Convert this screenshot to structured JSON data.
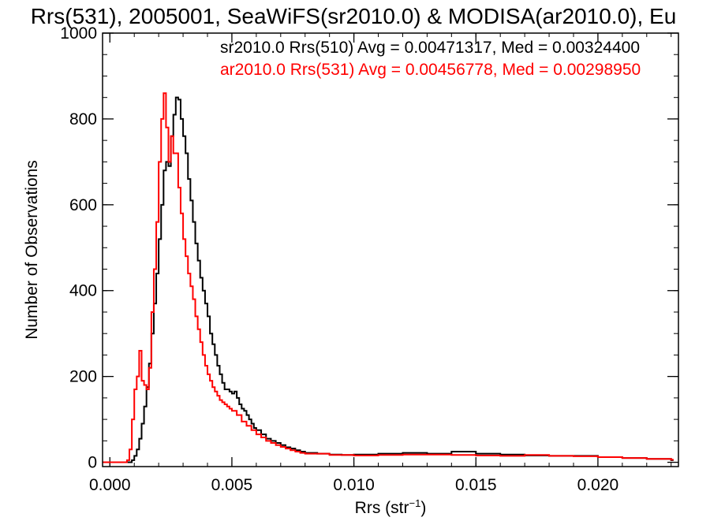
{
  "chart_data": {
    "type": "line",
    "title": "Rrs(531), 2005001, SeaWiFS(sr2010.0) & MODISA(ar2010.0), Eu",
    "xlabel_main": "Rrs (str",
    "xlabel_sup": "−1",
    "xlabel_tail": ")",
    "ylabel": "Number of Observations",
    "xlim": [
      -0.0003,
      0.0233
    ],
    "ylim": [
      -10,
      1000
    ],
    "xticks": [
      0.0,
      0.005,
      0.01,
      0.015,
      0.02
    ],
    "xtick_labels": [
      "0.000",
      "0.005",
      "0.010",
      "0.015",
      "0.020"
    ],
    "yticks": [
      0,
      200,
      400,
      600,
      800,
      1000
    ],
    "ytick_labels": [
      "0",
      "200",
      "400",
      "600",
      "800",
      "1000"
    ],
    "x_minor_step": 0.001,
    "y_minor_step": 50,
    "step_plot": true,
    "grid": false,
    "legend_position": "top-right",
    "series": [
      {
        "name": "sr2010.0 Rrs(510) Avg = 0.00471317, Med = 0.00324400",
        "color": "#000000",
        "points": [
          [
            -0.0003,
            0
          ],
          [
            0.0008,
            0
          ],
          [
            0.0009,
            5
          ],
          [
            0.001,
            15
          ],
          [
            0.0011,
            30
          ],
          [
            0.0012,
            55
          ],
          [
            0.0013,
            90
          ],
          [
            0.0014,
            130
          ],
          [
            0.0015,
            175
          ],
          [
            0.0016,
            230
          ],
          [
            0.0017,
            300
          ],
          [
            0.0018,
            370
          ],
          [
            0.0019,
            440
          ],
          [
            0.002,
            520
          ],
          [
            0.0021,
            600
          ],
          [
            0.0022,
            680
          ],
          [
            0.0023,
            700
          ],
          [
            0.0024,
            690
          ],
          [
            0.0025,
            760
          ],
          [
            0.0026,
            810
          ],
          [
            0.0027,
            850
          ],
          [
            0.0028,
            845
          ],
          [
            0.0029,
            800
          ],
          [
            0.003,
            760
          ],
          [
            0.0031,
            720
          ],
          [
            0.0032,
            660
          ],
          [
            0.0033,
            610
          ],
          [
            0.0034,
            560
          ],
          [
            0.0035,
            510
          ],
          [
            0.0036,
            470
          ],
          [
            0.0037,
            430
          ],
          [
            0.0038,
            400
          ],
          [
            0.0039,
            370
          ],
          [
            0.004,
            340
          ],
          [
            0.0041,
            300
          ],
          [
            0.0042,
            275
          ],
          [
            0.0043,
            250
          ],
          [
            0.0044,
            225
          ],
          [
            0.0045,
            205
          ],
          [
            0.0046,
            185
          ],
          [
            0.0047,
            170
          ],
          [
            0.0048,
            170
          ],
          [
            0.0049,
            165
          ],
          [
            0.005,
            160
          ],
          [
            0.0051,
            165
          ],
          [
            0.0052,
            150
          ],
          [
            0.0053,
            135
          ],
          [
            0.0054,
            125
          ],
          [
            0.0055,
            120
          ],
          [
            0.0056,
            110
          ],
          [
            0.0057,
            100
          ],
          [
            0.0058,
            90
          ],
          [
            0.0059,
            80
          ],
          [
            0.006,
            75
          ],
          [
            0.0062,
            65
          ],
          [
            0.0064,
            55
          ],
          [
            0.0066,
            50
          ],
          [
            0.0068,
            45
          ],
          [
            0.007,
            40
          ],
          [
            0.0072,
            35
          ],
          [
            0.0074,
            32
          ],
          [
            0.0076,
            28
          ],
          [
            0.0078,
            25
          ],
          [
            0.008,
            22
          ],
          [
            0.0085,
            20
          ],
          [
            0.009,
            18
          ],
          [
            0.0095,
            17
          ],
          [
            0.01,
            18
          ],
          [
            0.011,
            20
          ],
          [
            0.012,
            22
          ],
          [
            0.013,
            20
          ],
          [
            0.014,
            25
          ],
          [
            0.015,
            20
          ],
          [
            0.016,
            18
          ],
          [
            0.017,
            16
          ],
          [
            0.018,
            15
          ],
          [
            0.019,
            15
          ],
          [
            0.02,
            12
          ],
          [
            0.021,
            10
          ],
          [
            0.022,
            8
          ],
          [
            0.023,
            5
          ]
        ]
      },
      {
        "name": "ar2010.0 Rrs(531) Avg = 0.00456778, Med = 0.00298950",
        "color": "#ff0000",
        "points": [
          [
            -0.0003,
            0
          ],
          [
            0.0006,
            0
          ],
          [
            0.0007,
            5
          ],
          [
            0.0008,
            30
          ],
          [
            0.0009,
            100
          ],
          [
            0.001,
            170
          ],
          [
            0.0011,
            200
          ],
          [
            0.0012,
            260
          ],
          [
            0.0013,
            190
          ],
          [
            0.0014,
            180
          ],
          [
            0.0015,
            170
          ],
          [
            0.0016,
            220
          ],
          [
            0.0017,
            350
          ],
          [
            0.0018,
            450
          ],
          [
            0.0019,
            560
          ],
          [
            0.002,
            700
          ],
          [
            0.0021,
            800
          ],
          [
            0.0022,
            860
          ],
          [
            0.0023,
            780
          ],
          [
            0.0024,
            700
          ],
          [
            0.0025,
            760
          ],
          [
            0.0026,
            720
          ],
          [
            0.0027,
            720
          ],
          [
            0.0028,
            640
          ],
          [
            0.0029,
            580
          ],
          [
            0.003,
            520
          ],
          [
            0.0031,
            480
          ],
          [
            0.0032,
            440
          ],
          [
            0.0033,
            410
          ],
          [
            0.0034,
            380
          ],
          [
            0.0035,
            340
          ],
          [
            0.0036,
            310
          ],
          [
            0.0037,
            280
          ],
          [
            0.0038,
            250
          ],
          [
            0.0039,
            225
          ],
          [
            0.004,
            205
          ],
          [
            0.0041,
            190
          ],
          [
            0.0042,
            175
          ],
          [
            0.0043,
            165
          ],
          [
            0.0044,
            155
          ],
          [
            0.0045,
            145
          ],
          [
            0.0046,
            140
          ],
          [
            0.0047,
            135
          ],
          [
            0.0048,
            130
          ],
          [
            0.0049,
            125
          ],
          [
            0.005,
            120
          ],
          [
            0.0052,
            110
          ],
          [
            0.0054,
            95
          ],
          [
            0.0056,
            85
          ],
          [
            0.0058,
            75
          ],
          [
            0.006,
            65
          ],
          [
            0.0062,
            58
          ],
          [
            0.0064,
            50
          ],
          [
            0.0066,
            45
          ],
          [
            0.0068,
            40
          ],
          [
            0.007,
            36
          ],
          [
            0.0072,
            32
          ],
          [
            0.0074,
            28
          ],
          [
            0.0076,
            25
          ],
          [
            0.0078,
            22
          ],
          [
            0.008,
            20
          ],
          [
            0.009,
            17
          ],
          [
            0.01,
            16
          ],
          [
            0.011,
            17
          ],
          [
            0.012,
            18
          ],
          [
            0.013,
            18
          ],
          [
            0.014,
            17
          ],
          [
            0.015,
            16
          ],
          [
            0.016,
            15
          ],
          [
            0.017,
            17
          ],
          [
            0.018,
            15
          ],
          [
            0.019,
            14
          ],
          [
            0.02,
            12
          ],
          [
            0.021,
            10
          ],
          [
            0.022,
            8
          ],
          [
            0.023,
            6
          ]
        ]
      }
    ]
  }
}
